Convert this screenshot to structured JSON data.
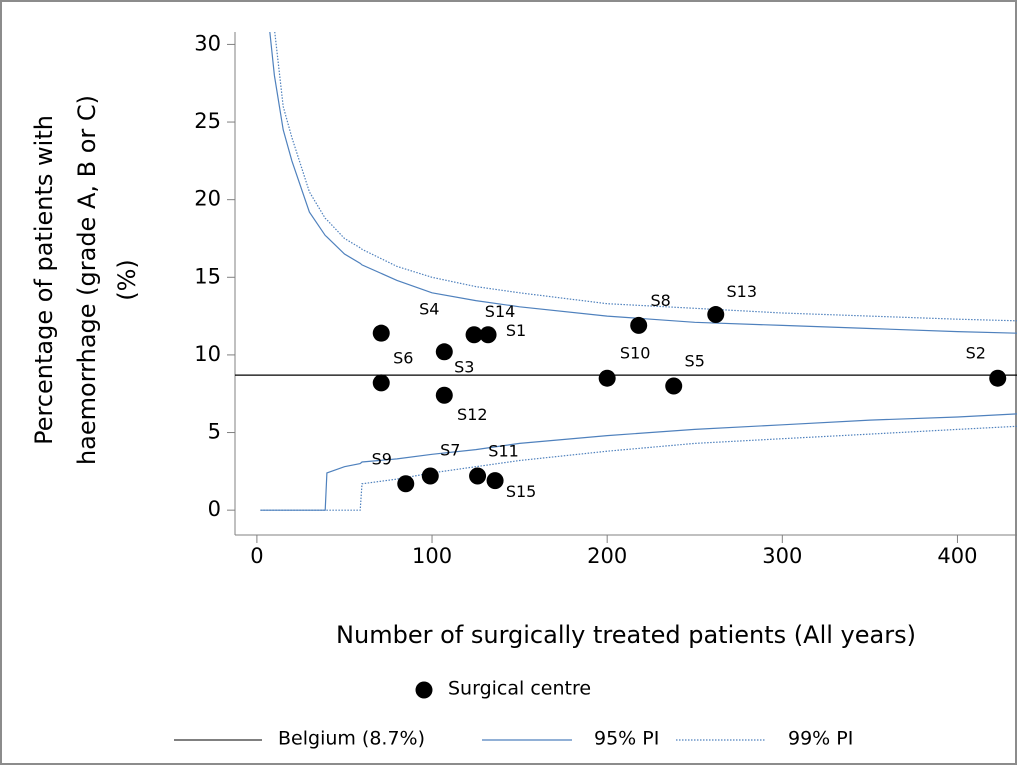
{
  "chart_data": {
    "type": "scatter",
    "xlabel": "Number of surgically treated patients (All years)",
    "ylabel": [
      "Percentage of patients with",
      "haemorrhage (grade A, B or C)",
      "(%)"
    ],
    "xlim": [
      -12.5,
      434
    ],
    "xticks": [
      0,
      100,
      200,
      300,
      400
    ],
    "ylim": [
      -1.6,
      30.8
    ],
    "yticks": [
      0,
      5,
      10,
      15,
      20,
      25,
      30
    ],
    "points": {
      "name": "Surgical centre",
      "color": "#000000",
      "labels": [
        "S1",
        "S2",
        "S3",
        "S4",
        "S5",
        "S6",
        "S7",
        "S8",
        "S9",
        "S10",
        "S11",
        "S12",
        "S13",
        "S14",
        "S15"
      ],
      "x": [
        132,
        423,
        107,
        71,
        238,
        71,
        99,
        218,
        85,
        200,
        126,
        107,
        262,
        124,
        136
      ],
      "y": [
        11.3,
        8.5,
        10.2,
        11.4,
        8.0,
        8.2,
        2.2,
        11.9,
        1.7,
        8.5,
        2.2,
        7.4,
        12.6,
        11.3,
        1.9
      ]
    },
    "reference": {
      "name": "Belgium (8.7%)",
      "value": 8.7,
      "color": "#000000"
    },
    "x": [
      2,
      5,
      10,
      15,
      20,
      30,
      39,
      40,
      50,
      59,
      60,
      80,
      100,
      125,
      150,
      200,
      250,
      300,
      350,
      400,
      434
    ],
    "series": [
      {
        "name": "95% PI",
        "color": "#4f81bd",
        "style": "solid",
        "upper": [
          null,
          33.4,
          28,
          24.5,
          22.5,
          19.2,
          17.7,
          17.6,
          16.5,
          15.9,
          15.8,
          14.8,
          14.0,
          13.5,
          13.1,
          12.5,
          12.1,
          11.9,
          11.7,
          11.5,
          11.4
        ],
        "lower": [
          0,
          0,
          0,
          0,
          0,
          0,
          0,
          2.4,
          2.8,
          3.0,
          3.1,
          3.3,
          3.6,
          3.9,
          4.3,
          4.8,
          5.2,
          5.5,
          5.8,
          6.0,
          6.2
        ]
      },
      {
        "name": "99% PI",
        "color": "#4f81bd",
        "style": "dotted",
        "upper": [
          null,
          36,
          31,
          26,
          24,
          20.5,
          18.8,
          18.7,
          17.5,
          16.9,
          16.8,
          15.7,
          15.0,
          14.4,
          14.0,
          13.3,
          13.0,
          12.7,
          12.5,
          12.3,
          12.2
        ],
        "lower": [
          0,
          0,
          0,
          0,
          0,
          0,
          0,
          0,
          0,
          0,
          1.7,
          2.0,
          2.4,
          2.8,
          3.2,
          3.8,
          4.3,
          4.6,
          4.9,
          5.2,
          5.4
        ]
      }
    ]
  }
}
